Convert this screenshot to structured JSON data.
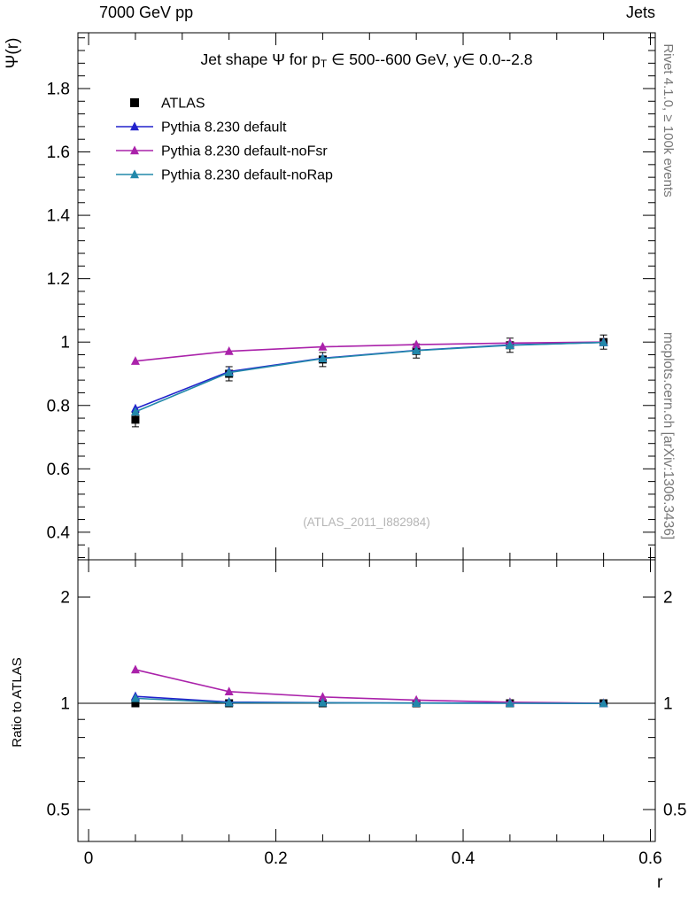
{
  "page": {
    "header_left": "7000 GeV pp",
    "header_right": "Jets"
  },
  "side_labels": {
    "right_top": "Rivet 4.1.0, ≥ 100k events",
    "right_bottom": "mcplots.cern.ch [arXiv:1306.3436]"
  },
  "watermark": "(ATLAS_2011_I882984)",
  "title": {
    "p1": "Jet shape Ψ for p",
    "sub": "T",
    "p2": " ∈ 500--600 GeV, y∈ 0.0--2.8"
  },
  "axes": {
    "y_main": "Ψ(r)",
    "y_ratio": "Ratio to ATLAS",
    "x": "r"
  },
  "chart_data": {
    "type": "line",
    "title": "Jet shape Ψ for p_T ∈ 500--600 GeV, y∈ 0.0--2.8",
    "xlabel": "r",
    "ylabel": "Ψ(r)",
    "ratio_ylabel": "Ratio to ATLAS",
    "legend_position": "top-left",
    "x": [
      0.05,
      0.15,
      0.25,
      0.35,
      0.45,
      0.55
    ],
    "series": [
      {
        "name": "ATLAS",
        "marker": "square",
        "color": "#000000",
        "values": [
          0.755,
          0.9,
          0.945,
          0.972,
          0.99,
          1.0
        ],
        "ratio": [
          1.0,
          1.0,
          1.0,
          1.0,
          1.0,
          1.0
        ]
      },
      {
        "name": "Pythia 8.230 default",
        "marker": "triangle",
        "color": "#2222cc",
        "values": [
          0.79,
          0.907,
          0.949,
          0.974,
          0.991,
          0.999
        ],
        "ratio": [
          1.046,
          1.008,
          1.004,
          1.002,
          1.001,
          0.999
        ]
      },
      {
        "name": "Pythia 8.230 default-noFsr",
        "marker": "triangle",
        "color": "#aa22aa",
        "values": [
          0.94,
          0.971,
          0.985,
          0.992,
          0.997,
          1.0
        ],
        "ratio": [
          1.245,
          1.079,
          1.042,
          1.021,
          1.007,
          1.0
        ]
      },
      {
        "name": "Pythia 8.230 default-noRap",
        "marker": "triangle",
        "color": "#2288aa",
        "values": [
          0.78,
          0.904,
          0.948,
          0.973,
          0.99,
          0.999
        ],
        "ratio": [
          1.033,
          1.004,
          1.003,
          1.001,
          1.0,
          0.999
        ]
      }
    ],
    "xlim": [
      -0.0114,
      0.6052
    ],
    "ylim_main": [
      0.313,
      1.976
    ],
    "ylim_ratio": [
      0.406,
      2.55
    ],
    "ratio_scale": "log",
    "reference_line": 1,
    "x_ticks": {
      "values": [
        0,
        0.2,
        0.4,
        0.6
      ],
      "labels": [
        "0",
        "0.2",
        "0.4",
        "0.6"
      ],
      "minor_step": 0.05
    },
    "y_main_ticks": {
      "values": [
        0.4,
        0.6,
        0.8,
        1.0,
        1.2,
        1.4,
        1.6,
        1.8
      ],
      "labels": [
        "0.4",
        "0.6",
        "0.8",
        "1",
        "1.2",
        "1.4",
        "1.6",
        "1.8"
      ],
      "minor_step": 0.04
    },
    "y_ratio_ticks": {
      "values": [
        0.5,
        1,
        2
      ],
      "labels": [
        "0.5",
        "1",
        "2"
      ],
      "minors": [
        0.6,
        0.7,
        0.8,
        0.9
      ]
    }
  }
}
